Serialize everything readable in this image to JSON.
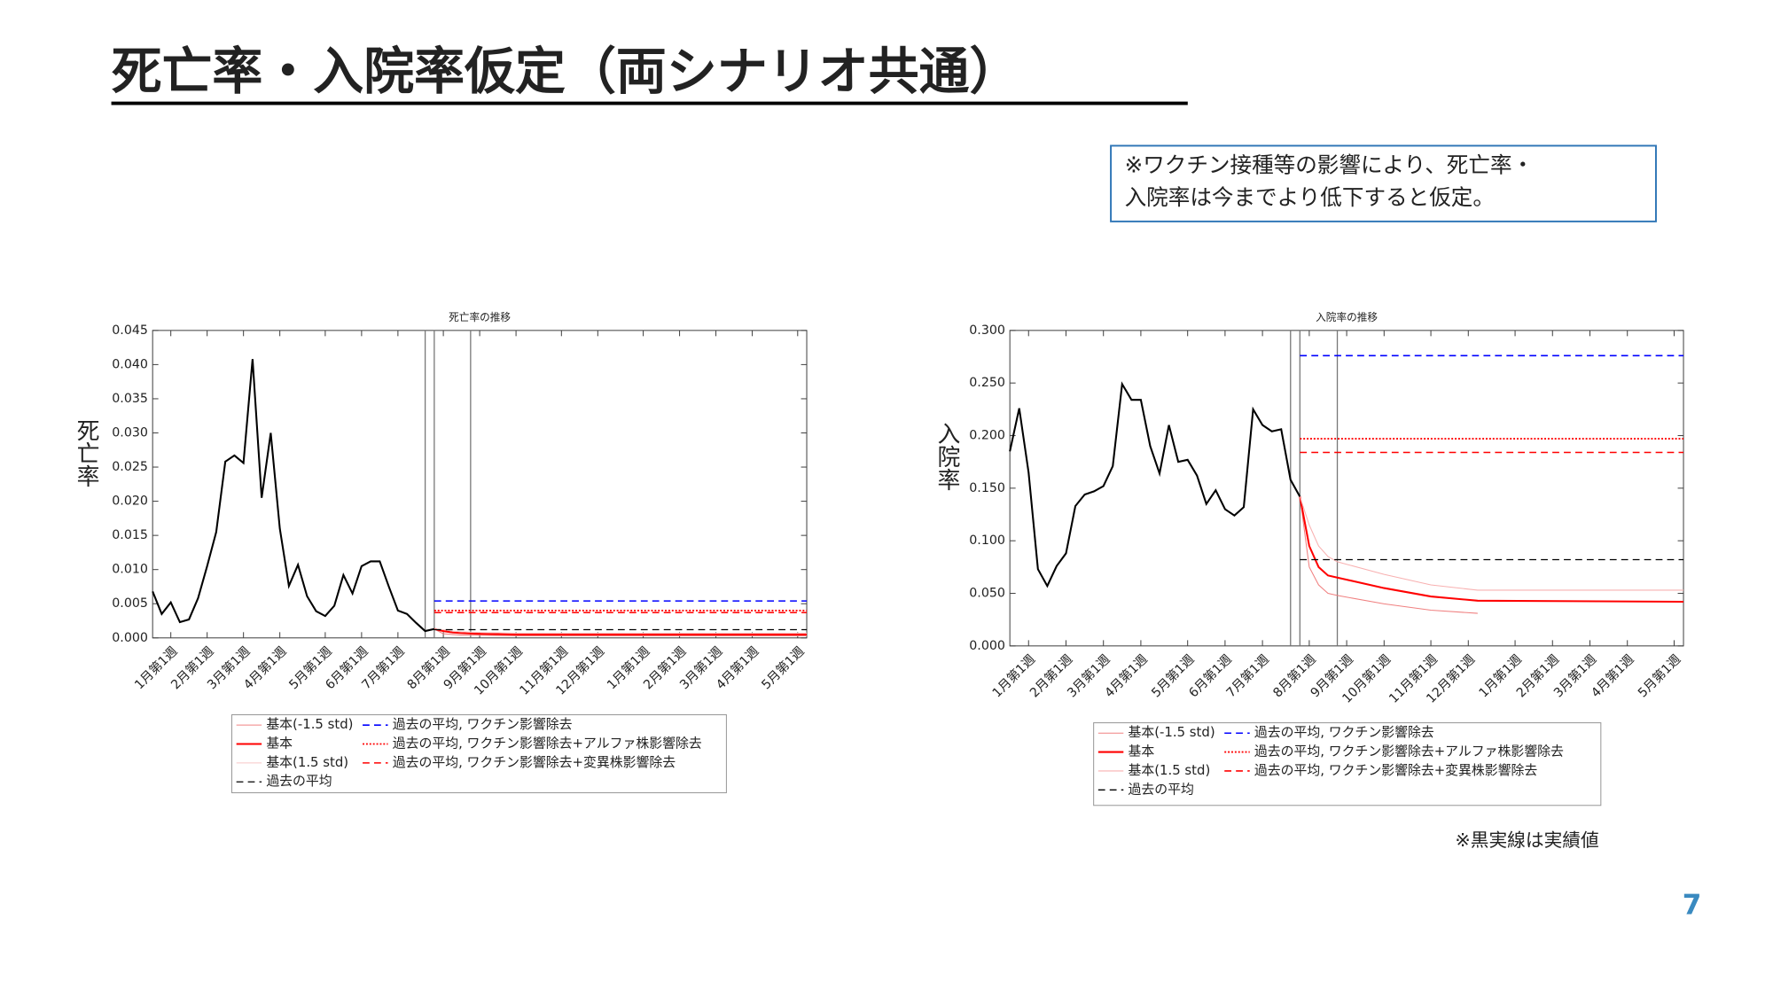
{
  "slide": {
    "title": "死亡率・入院率仮定（両シナリオ共通）",
    "note": [
      "※ワクチン接種等の影響により、死亡率・",
      "入院率は今までより低下すると仮定。"
    ],
    "footnote": "※黒実線は実績値",
    "page_number": "7"
  },
  "chart_data": [
    {
      "type": "line",
      "title": "死亡率の推移",
      "y_label": "死亡率",
      "xlim": [
        0,
        72
      ],
      "ylim": [
        0,
        0.045
      ],
      "xticks": [
        {
          "value": 2,
          "label": "1月第1週"
        },
        {
          "value": 6,
          "label": "2月第1週"
        },
        {
          "value": 10,
          "label": "3月第1週"
        },
        {
          "value": 14,
          "label": "4月第1週"
        },
        {
          "value": 19,
          "label": "5月第1週"
        },
        {
          "value": 23,
          "label": "6月第1週"
        },
        {
          "value": 27,
          "label": "7月第1週"
        },
        {
          "value": 32,
          "label": "8月第1週"
        },
        {
          "value": 36,
          "label": "9月第1週"
        },
        {
          "value": 40,
          "label": "10月第1週"
        },
        {
          "value": 45,
          "label": "11月第1週"
        },
        {
          "value": 49,
          "label": "12月第1週"
        },
        {
          "value": 54,
          "label": "1月第1週"
        },
        {
          "value": 58,
          "label": "2月第1週"
        },
        {
          "value": 62,
          "label": "3月第1週"
        },
        {
          "value": 66,
          "label": "4月第1週"
        },
        {
          "value": 71,
          "label": "5月第1週"
        }
      ],
      "yticks": [
        {
          "value": 0,
          "label": "0.000"
        },
        {
          "value": 0.005,
          "label": "0.005"
        },
        {
          "value": 0.01,
          "label": "0.010"
        },
        {
          "value": 0.015,
          "label": "0.015"
        },
        {
          "value": 0.02,
          "label": "0.020"
        },
        {
          "value": 0.025,
          "label": "0.025"
        },
        {
          "value": 0.03,
          "label": "0.030"
        },
        {
          "value": 0.035,
          "label": "0.035"
        },
        {
          "value": 0.04,
          "label": "0.040"
        },
        {
          "value": 0.045,
          "label": "0.045"
        }
      ],
      "vlines": [
        30,
        31,
        35
      ],
      "series": [
        {
          "name": "基本(-1.5 std)",
          "color": "#f08080",
          "dash": "solid",
          "width": 0.8,
          "x": [
            31,
            32,
            33,
            34,
            36,
            40,
            45,
            50,
            72
          ],
          "values": [
            0.0013,
            0.0006,
            0.0005,
            0.0004,
            0.0004,
            0.0003,
            0.0003,
            0.0003,
            0.0003
          ]
        },
        {
          "name": "基本",
          "color": "#ff0000",
          "dash": "solid",
          "width": 1.6,
          "x": [
            31,
            32,
            33,
            34,
            36,
            40,
            45,
            50,
            72
          ],
          "values": [
            0.0013,
            0.001,
            0.0008,
            0.0007,
            0.0006,
            0.0005,
            0.0005,
            0.0005,
            0.0005
          ]
        },
        {
          "name": "基本(1.5 std)",
          "color": "#f8c8c8",
          "dash": "solid",
          "width": 0.8,
          "x": [
            31,
            32,
            33,
            34,
            36,
            40,
            45,
            50,
            72
          ],
          "values": [
            0.0013,
            0.0012,
            0.001,
            0.0009,
            0.0008,
            0.0007,
            0.0007,
            0.0007,
            0.0007
          ]
        },
        {
          "name": "過去の平均",
          "color": "#000000",
          "dash": "dashed",
          "width": 1,
          "x": [
            31,
            72
          ],
          "values": [
            0.0012,
            0.0012
          ]
        },
        {
          "name": "過去の平均, ワクチン影響除去",
          "color": "#0000ff",
          "dash": "dashed",
          "width": 1.2,
          "x": [
            31,
            72
          ],
          "values": [
            0.0054,
            0.0054
          ]
        },
        {
          "name": "過去の平均, ワクチン影響除去+アルファ株影響除去",
          "color": "#ff0000",
          "dash": "dotted",
          "width": 1.4,
          "x": [
            31,
            72
          ],
          "values": [
            0.004,
            0.004
          ]
        },
        {
          "name": "過去の平均, ワクチン影響除去+変異株影響除去",
          "color": "#ff0000",
          "dash": "dashed",
          "width": 1.2,
          "x": [
            31,
            72
          ],
          "values": [
            0.0037,
            0.0037
          ]
        },
        {
          "color": "#000000",
          "dash": "solid",
          "width": 1.6,
          "x": [
            0,
            1,
            2,
            3,
            4,
            5,
            6,
            7,
            8,
            9,
            10,
            11,
            12,
            13,
            14,
            15,
            16,
            17,
            18,
            19,
            20,
            21,
            22,
            23,
            24,
            25,
            26,
            27,
            28,
            29,
            30,
            31
          ],
          "values": [
            0.0068,
            0.0035,
            0.0052,
            0.0023,
            0.0027,
            0.0058,
            0.0105,
            0.0155,
            0.0258,
            0.0267,
            0.0256,
            0.0408,
            0.0205,
            0.03,
            0.016,
            0.0076,
            0.0107,
            0.0061,
            0.0039,
            0.0032,
            0.0047,
            0.0092,
            0.0065,
            0.0105,
            0.0112,
            0.0112,
            0.0075,
            0.004,
            0.0035,
            0.0022,
            0.001,
            0.0013
          ]
        }
      ]
    },
    {
      "type": "line",
      "title": "入院率の推移",
      "y_label": "入院率",
      "xlim": [
        0,
        72
      ],
      "ylim": [
        0,
        0.3
      ],
      "xticks": [
        {
          "value": 2,
          "label": "1月第1週"
        },
        {
          "value": 6,
          "label": "2月第1週"
        },
        {
          "value": 10,
          "label": "3月第1週"
        },
        {
          "value": 14,
          "label": "4月第1週"
        },
        {
          "value": 19,
          "label": "5月第1週"
        },
        {
          "value": 23,
          "label": "6月第1週"
        },
        {
          "value": 27,
          "label": "7月第1週"
        },
        {
          "value": 32,
          "label": "8月第1週"
        },
        {
          "value": 36,
          "label": "9月第1週"
        },
        {
          "value": 40,
          "label": "10月第1週"
        },
        {
          "value": 45,
          "label": "11月第1週"
        },
        {
          "value": 49,
          "label": "12月第1週"
        },
        {
          "value": 54,
          "label": "1月第1週"
        },
        {
          "value": 58,
          "label": "2月第1週"
        },
        {
          "value": 62,
          "label": "3月第1週"
        },
        {
          "value": 66,
          "label": "4月第1週"
        },
        {
          "value": 71,
          "label": "5月第1週"
        }
      ],
      "yticks": [
        {
          "value": 0,
          "label": "0.000"
        },
        {
          "value": 0.05,
          "label": "0.050"
        },
        {
          "value": 0.1,
          "label": "0.100"
        },
        {
          "value": 0.15,
          "label": "0.150"
        },
        {
          "value": 0.2,
          "label": "0.200"
        },
        {
          "value": 0.25,
          "label": "0.250"
        },
        {
          "value": 0.3,
          "label": "0.300"
        }
      ],
      "vlines": [
        30,
        31,
        35
      ],
      "series": [
        {
          "name": "基本(-1.5 std)",
          "color": "#f08080",
          "dash": "solid",
          "width": 0.8,
          "x": [
            31,
            32,
            33,
            34,
            35,
            40,
            45,
            50
          ],
          "values": [
            0.142,
            0.075,
            0.058,
            0.05,
            0.048,
            0.04,
            0.034,
            0.031
          ]
        },
        {
          "name": "基本",
          "color": "#ff0000",
          "dash": "solid",
          "width": 1.6,
          "x": [
            31,
            32,
            33,
            34,
            35,
            40,
            45,
            50,
            72
          ],
          "values": [
            0.142,
            0.095,
            0.075,
            0.067,
            0.065,
            0.055,
            0.047,
            0.043,
            0.042
          ]
        },
        {
          "name": "基本(1.5 std)",
          "color": "#f8b0b0",
          "dash": "solid",
          "width": 0.8,
          "x": [
            31,
            32,
            33,
            34,
            35,
            40,
            45,
            50,
            72
          ],
          "values": [
            0.142,
            0.115,
            0.095,
            0.085,
            0.08,
            0.068,
            0.058,
            0.053,
            0.053
          ]
        },
        {
          "name": "過去の平均",
          "color": "#000000",
          "dash": "dashed",
          "width": 1,
          "x": [
            31,
            72
          ],
          "values": [
            0.082,
            0.082
          ]
        },
        {
          "name": "過去の平均, ワクチン影響除去",
          "color": "#0000ff",
          "dash": "dashed",
          "width": 1.2,
          "x": [
            31,
            72
          ],
          "values": [
            0.276,
            0.276
          ]
        },
        {
          "name": "過去の平均, ワクチン影響除去+アルファ株影響除去",
          "color": "#ff0000",
          "dash": "dotted",
          "width": 1.4,
          "x": [
            31,
            72
          ],
          "values": [
            0.197,
            0.197
          ]
        },
        {
          "name": "過去の平均, ワクチン影響除去+変異株影響除去",
          "color": "#ff0000",
          "dash": "dashed",
          "width": 1.2,
          "x": [
            31,
            72
          ],
          "values": [
            0.184,
            0.184
          ]
        },
        {
          "color": "#000000",
          "dash": "solid",
          "width": 1.6,
          "x": [
            0,
            1,
            2,
            3,
            4,
            5,
            6,
            7,
            8,
            9,
            10,
            11,
            12,
            13,
            14,
            15,
            16,
            17,
            18,
            19,
            20,
            21,
            22,
            23,
            24,
            25,
            26,
            27,
            28,
            29,
            30,
            31
          ],
          "values": [
            0.185,
            0.226,
            0.165,
            0.073,
            0.057,
            0.076,
            0.088,
            0.133,
            0.144,
            0.147,
            0.152,
            0.171,
            0.249,
            0.234,
            0.234,
            0.19,
            0.164,
            0.21,
            0.175,
            0.177,
            0.162,
            0.135,
            0.148,
            0.13,
            0.124,
            0.132,
            0.225,
            0.21,
            0.204,
            0.206,
            0.158,
            0.142
          ]
        }
      ]
    }
  ]
}
